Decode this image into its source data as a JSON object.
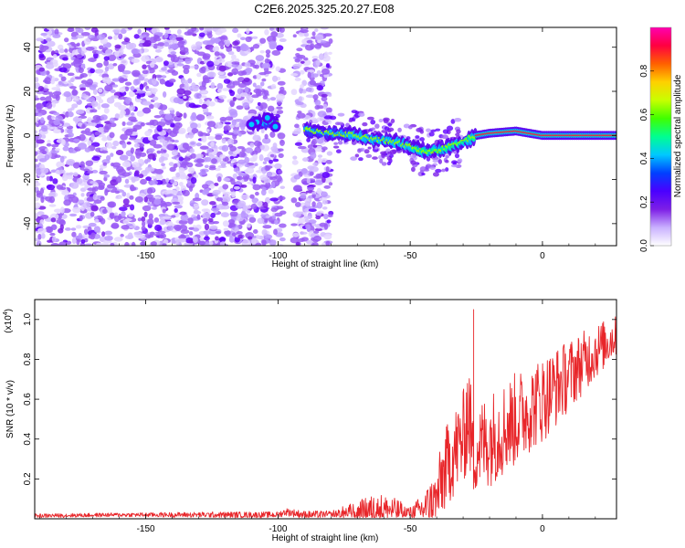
{
  "title": "C2E6.2025.325.20.27.E08",
  "chart_data": [
    {
      "type": "heatmap",
      "xlabel": "Height of straight line (km)",
      "ylabel": "Frequency (Hz)",
      "xlim": [
        -192,
        28
      ],
      "ylim": [
        -50,
        49
      ],
      "xticks": [
        -150,
        -100,
        -50,
        0
      ],
      "yticks": [
        -40,
        -20,
        0,
        20,
        40
      ],
      "noise_region_x": [
        -192,
        -80
      ],
      "clean_gap_x": [
        -98,
        -94
      ],
      "signal_track": {
        "x": [
          -110,
          -102,
          -88,
          -80,
          -70,
          -62,
          -55,
          -50,
          -45,
          -40,
          -35,
          -30,
          -25,
          -20,
          -10,
          -5,
          0,
          10,
          28
        ],
        "y": [
          6,
          6,
          2,
          1,
          0,
          -2,
          -3,
          -5,
          -7,
          -7,
          -5,
          -3,
          0,
          1,
          2,
          1,
          0,
          0,
          0
        ]
      },
      "colorbar": {
        "label": "Normalized spectral amplitude",
        "range": [
          0,
          1
        ],
        "ticks": [
          "0.0",
          "0.2",
          "0.4",
          "0.6",
          "0.8"
        ],
        "colors": [
          "#ffffff",
          "#c9b0ff",
          "#7d1fe6",
          "#4a00ff",
          "#0040ff",
          "#00c8ff",
          "#00ff90",
          "#40ff00",
          "#c8ff00",
          "#ffd000",
          "#ff6000",
          "#ff0040",
          "#ff00b0"
        ]
      }
    },
    {
      "type": "line",
      "xlabel": "Height of straight line (km)",
      "ylabel": "SNR (10 * v/v)",
      "multiplier": "(x10",
      "multiplier_exp": "4",
      "xlim": [
        -192,
        28
      ],
      "ylim": [
        0,
        1.1
      ],
      "xticks": [
        -150,
        -100,
        -50,
        0
      ],
      "yticks": [
        "0.2",
        "0.4",
        "0.6",
        "0.8",
        "1.0"
      ],
      "line_color": "#e8262a",
      "series": {
        "x": [
          -192,
          -160,
          -120,
          -100,
          -97,
          -90,
          -80,
          -70,
          -62,
          -55,
          -50,
          -45,
          -40,
          -38,
          -35,
          -30,
          -28,
          -26,
          -25,
          -22,
          -20,
          -15,
          -10,
          -5,
          0,
          5,
          10,
          15,
          20,
          28
        ],
        "baseline": [
          0.015,
          0.02,
          0.02,
          0.02,
          0.035,
          0.02,
          0.02,
          0.03,
          0.05,
          0.04,
          0.03,
          0.05,
          0.1,
          0.2,
          0.3,
          0.4,
          0.55,
          0.3,
          0.35,
          0.38,
          0.4,
          0.45,
          0.5,
          0.55,
          0.6,
          0.66,
          0.72,
          0.78,
          0.84,
          0.92
        ],
        "amplitude": [
          0.01,
          0.01,
          0.015,
          0.015,
          0.02,
          0.02,
          0.02,
          0.06,
          0.08,
          0.06,
          0.03,
          0.08,
          0.15,
          0.2,
          0.22,
          0.24,
          0.3,
          0.18,
          0.22,
          0.24,
          0.24,
          0.24,
          0.24,
          0.22,
          0.22,
          0.2,
          0.18,
          0.16,
          0.14,
          0.1
        ]
      },
      "peaks": [
        {
          "x": -26,
          "y": 1.05
        }
      ]
    }
  ]
}
